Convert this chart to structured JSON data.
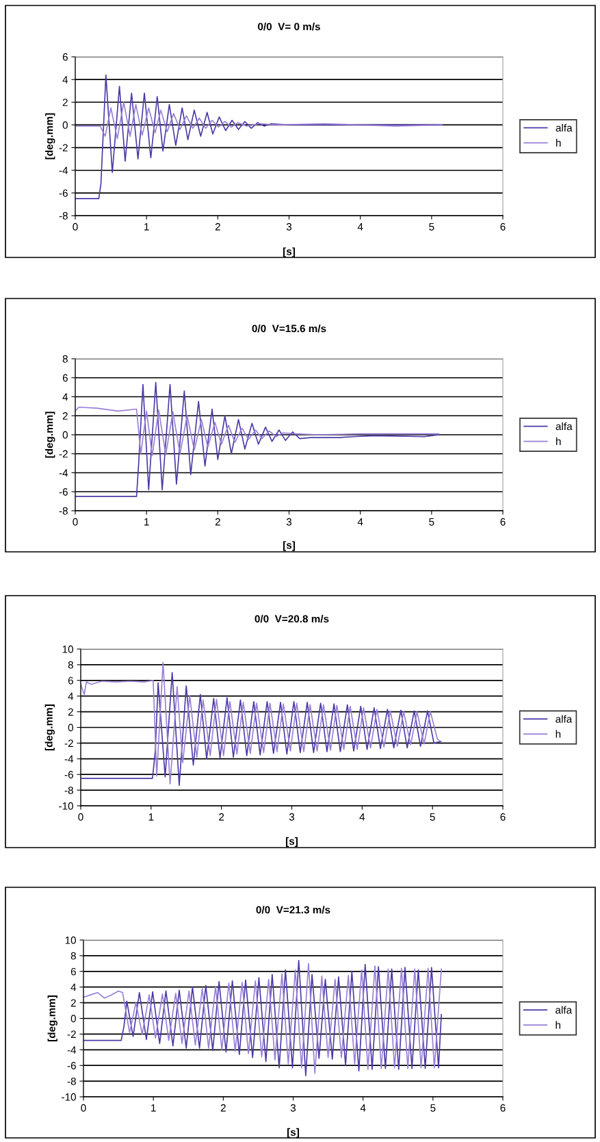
{
  "chart_data": [
    {
      "type": "line",
      "title": "0/0  V= 0 m/s",
      "xlabel": "[s]",
      "ylabel": "[deg.mm]",
      "xlim": [
        0,
        6
      ],
      "xticks": [
        0,
        1,
        2,
        3,
        4,
        5,
        6
      ],
      "ylim": [
        -8,
        6
      ],
      "yticks": [
        -8,
        -6,
        -4,
        -2,
        0,
        2,
        4,
        6
      ],
      "grid": "y",
      "legend": "right",
      "series": [
        {
          "name": "alfa",
          "color": "#4b3aa8",
          "x": [
            0,
            0.33,
            0.36,
            0.43,
            0.52,
            0.62,
            0.7,
            0.79,
            0.88,
            0.97,
            1.06,
            1.15,
            1.23,
            1.32,
            1.41,
            1.5,
            1.58,
            1.67,
            1.76,
            1.85,
            1.93,
            2.02,
            2.11,
            2.2,
            2.29,
            2.38,
            2.47,
            2.56,
            2.65,
            2.75,
            3.0,
            5.15
          ],
          "values": [
            -6.5,
            -6.5,
            -5.2,
            4.4,
            -4.2,
            3.4,
            -3.2,
            2.8,
            -3.0,
            2.8,
            -2.9,
            2.5,
            -2.3,
            1.8,
            -1.8,
            1.5,
            -1.3,
            1.3,
            -1.0,
            1.1,
            -0.8,
            0.7,
            -0.5,
            0.4,
            -0.4,
            0.3,
            -0.3,
            0.2,
            -0.1,
            0.1,
            0,
            0
          ]
        },
        {
          "name": "h",
          "color": "#9a7fd6",
          "x": [
            0,
            0.35,
            0.42,
            0.5,
            0.59,
            0.68,
            0.77,
            0.85,
            0.94,
            1.03,
            1.12,
            1.2,
            1.29,
            1.38,
            1.47,
            1.56,
            1.65,
            1.74,
            1.83,
            1.92,
            2.01,
            2.1,
            2.19,
            2.28,
            2.4,
            2.6,
            2.8,
            3.5,
            4.5,
            5.15
          ],
          "values": [
            -0.1,
            -0.1,
            -1.0,
            1.5,
            -1.2,
            2.0,
            -1.0,
            1.8,
            -0.9,
            1.5,
            -0.7,
            1.3,
            -0.6,
            1.0,
            -0.4,
            0.8,
            -0.3,
            0.6,
            -0.3,
            0.4,
            -0.2,
            0.3,
            -0.2,
            0.2,
            -0.1,
            0.1,
            0,
            0.1,
            -0.1,
            0
          ]
        }
      ]
    },
    {
      "type": "line",
      "title": "0/0  V=15.6 m/s",
      "xlabel": "[s]",
      "ylabel": "[deg.mm]",
      "xlim": [
        0,
        6
      ],
      "xticks": [
        0,
        1,
        2,
        3,
        4,
        5,
        6
      ],
      "ylim": [
        -8,
        8
      ],
      "yticks": [
        -8,
        -6,
        -4,
        -2,
        0,
        2,
        4,
        6,
        8
      ],
      "grid": "y",
      "legend": "right",
      "series": [
        {
          "name": "alfa",
          "color": "#4b3aa8",
          "x": [
            0,
            0.86,
            0.89,
            0.95,
            1.03,
            1.13,
            1.22,
            1.33,
            1.42,
            1.53,
            1.62,
            1.73,
            1.82,
            1.92,
            2.0,
            2.1,
            2.19,
            2.29,
            2.38,
            2.48,
            2.57,
            2.67,
            2.76,
            2.86,
            2.95,
            3.05,
            3.15,
            3.3,
            3.5,
            3.7,
            3.9,
            4.2,
            4.9,
            5.1
          ],
          "values": [
            -6.5,
            -6.5,
            -3,
            5.3,
            -5.8,
            5.5,
            -5.8,
            5.3,
            -5.2,
            4.6,
            -4.2,
            3.5,
            -3.3,
            2.7,
            -2.6,
            2.0,
            -2.0,
            1.6,
            -1.5,
            1.2,
            -1.0,
            0.8,
            -0.7,
            0.5,
            -0.6,
            0.3,
            -0.4,
            -0.3,
            -0.3,
            -0.3,
            -0.2,
            -0.1,
            -0.2,
            0
          ]
        },
        {
          "name": "h",
          "color": "#9a7fd6",
          "x": [
            0,
            0.05,
            0.3,
            0.6,
            0.86,
            0.92,
            1.0,
            1.08,
            1.17,
            1.27,
            1.37,
            1.47,
            1.57,
            1.67,
            1.77,
            1.86,
            1.96,
            2.05,
            2.15,
            2.24,
            2.34,
            2.43,
            2.53,
            2.62,
            2.72,
            2.82,
            2.91,
            3.1,
            3.4,
            4.0,
            4.5,
            5.1
          ],
          "values": [
            2.5,
            2.9,
            2.8,
            2.5,
            2.7,
            -2.0,
            2.5,
            -2.2,
            2.6,
            -2.1,
            2.4,
            -2.0,
            2.0,
            -1.6,
            1.6,
            -1.3,
            1.3,
            -1.0,
            1.0,
            -0.8,
            0.7,
            -0.5,
            0.5,
            -0.4,
            0.4,
            -0.2,
            0.2,
            0.1,
            0,
            0.1,
            0.1,
            0.1
          ]
        }
      ]
    },
    {
      "type": "line",
      "title": "0/0  V=20.8 m/s",
      "xlabel": "[s]",
      "ylabel": "[deg.mm]",
      "xlim": [
        0,
        6
      ],
      "xticks": [
        0,
        1,
        2,
        3,
        4,
        5,
        6
      ],
      "ylim": [
        -10,
        10
      ],
      "yticks": [
        -10,
        -8,
        -6,
        -4,
        -2,
        0,
        2,
        4,
        6,
        8,
        10
      ],
      "grid": "y",
      "legend": "right",
      "series": [
        {
          "name": "alfa",
          "color": "#4b3aa8",
          "x": [
            0,
            1.02,
            1.06,
            1.1,
            1.2,
            1.3,
            1.4,
            1.5,
            1.6,
            1.7,
            1.79,
            1.89,
            1.98,
            2.08,
            2.17,
            2.27,
            2.36,
            2.46,
            2.55,
            2.65,
            2.74,
            2.84,
            2.93,
            3.03,
            3.12,
            3.22,
            3.31,
            3.41,
            3.5,
            3.6,
            3.69,
            3.79,
            3.88,
            3.98,
            4.07,
            4.17,
            4.26,
            4.36,
            4.45,
            4.55,
            4.64,
            4.74,
            4.83,
            4.93,
            5.02,
            5.12
          ],
          "values": [
            -6.5,
            -6.5,
            -3,
            5.7,
            -6.3,
            7.0,
            -7.4,
            5.3,
            -4.8,
            4.2,
            -4.0,
            3.7,
            -3.9,
            3.8,
            -3.8,
            3.5,
            -3.6,
            3.3,
            -3.5,
            3.3,
            -3.3,
            3.2,
            -3.4,
            3.3,
            -3.2,
            3.2,
            -3.2,
            3.1,
            -3.1,
            3.0,
            -3.1,
            2.9,
            -3.0,
            2.7,
            -2.8,
            2.5,
            -2.7,
            2.3,
            -2.6,
            2.2,
            -2.6,
            2.1,
            -2.4,
            2.1,
            -2.0,
            -1.8
          ]
        },
        {
          "name": "h",
          "color": "#9a7fd6",
          "x": [
            0,
            0.05,
            0.08,
            0.15,
            0.3,
            0.5,
            0.7,
            0.9,
            1.03,
            1.08,
            1.17,
            1.27,
            1.37,
            1.45,
            1.55,
            1.65,
            1.74,
            1.84,
            1.93,
            2.03,
            2.12,
            2.22,
            2.31,
            2.41,
            2.5,
            2.6,
            2.69,
            2.79,
            2.88,
            2.98,
            3.07,
            3.17,
            3.26,
            3.36,
            3.45,
            3.55,
            3.64,
            3.74,
            3.83,
            3.93,
            4.02,
            4.12,
            4.21,
            4.31,
            4.4,
            4.5,
            4.59,
            4.69,
            4.78,
            4.88,
            4.97,
            5.07,
            5.12
          ],
          "values": [
            5.5,
            4.2,
            5.8,
            5.5,
            5.9,
            5.8,
            5.9,
            5.8,
            6.0,
            -6.2,
            8.3,
            -7.2,
            5.2,
            -4.5,
            4.0,
            -3.8,
            3.5,
            -3.6,
            3.6,
            -3.6,
            3.3,
            -3.4,
            3.2,
            -3.3,
            3.1,
            -3.2,
            3.1,
            -3.1,
            3.0,
            -3.0,
            3.1,
            -3.1,
            2.9,
            -3.0,
            2.9,
            -2.9,
            2.8,
            -2.8,
            2.7,
            -2.8,
            2.5,
            -2.6,
            2.3,
            -2.5,
            2.1,
            -2.4,
            2.0,
            -2.2,
            2.0,
            -2.1,
            2.0,
            -1.5,
            -1.8
          ]
        }
      ]
    },
    {
      "type": "line",
      "title": "0/0  V=21.3 m/s",
      "xlabel": "[s]",
      "ylabel": "[deg.mm]",
      "xlim": [
        0,
        6
      ],
      "xticks": [
        0,
        1,
        2,
        3,
        4,
        5,
        6
      ],
      "ylim": [
        -10,
        10
      ],
      "yticks": [
        -10,
        -8,
        -6,
        -4,
        -2,
        0,
        2,
        4,
        6,
        8,
        10
      ],
      "grid": "y",
      "legend": "right",
      "series": [
        {
          "name": "alfa",
          "color": "#4b3aa8",
          "x": [
            0,
            0.54,
            0.58,
            0.62,
            0.71,
            0.8,
            0.9,
            0.99,
            1.09,
            1.18,
            1.28,
            1.37,
            1.47,
            1.56,
            1.66,
            1.75,
            1.85,
            1.94,
            2.04,
            2.13,
            2.23,
            2.32,
            2.42,
            2.51,
            2.61,
            2.7,
            2.8,
            2.89,
            2.99,
            3.08,
            3.18,
            3.27,
            3.37,
            3.46,
            3.56,
            3.65,
            3.75,
            3.84,
            3.94,
            4.03,
            4.13,
            4.22,
            4.32,
            4.41,
            4.51,
            4.6,
            4.7,
            4.79,
            4.89,
            4.98,
            5.08,
            5.12
          ],
          "values": [
            -2.8,
            -2.8,
            -1,
            2.2,
            -2.3,
            3.3,
            -2.7,
            3.4,
            -3.2,
            3.5,
            -3.5,
            3.6,
            -3.8,
            4.0,
            -3.8,
            4.2,
            -4.1,
            4.7,
            -4.3,
            4.8,
            -4.6,
            4.9,
            -5.0,
            5.2,
            -5.5,
            5.6,
            -6.3,
            6.2,
            -6.3,
            7.4,
            -7.3,
            5.6,
            -5.1,
            5.0,
            -5.2,
            5.3,
            -6.0,
            6.0,
            -6.7,
            6.9,
            -6.5,
            6.6,
            -6.4,
            6.3,
            -6.5,
            6.5,
            -6.4,
            6.2,
            -6.4,
            6.5,
            -6.3,
            0.5
          ]
        },
        {
          "name": "h",
          "color": "#9a7fd6",
          "x": [
            0,
            0.1,
            0.2,
            0.3,
            0.4,
            0.5,
            0.56,
            0.66,
            0.75,
            0.84,
            0.94,
            1.03,
            1.13,
            1.22,
            1.32,
            1.41,
            1.51,
            1.6,
            1.7,
            1.79,
            1.89,
            1.98,
            2.08,
            2.17,
            2.27,
            2.36,
            2.46,
            2.55,
            2.65,
            2.74,
            2.84,
            2.93,
            3.03,
            3.12,
            3.22,
            3.31,
            3.41,
            3.5,
            3.6,
            3.69,
            3.79,
            3.88,
            3.98,
            4.07,
            4.17,
            4.26,
            4.36,
            4.45,
            4.55,
            4.64,
            4.74,
            4.83,
            4.93,
            5.02,
            5.12
          ],
          "values": [
            2.7,
            3.0,
            3.3,
            2.6,
            3.0,
            3.5,
            3.3,
            -1.8,
            2.0,
            -2.0,
            3.0,
            -2.5,
            3.1,
            -2.8,
            3.2,
            -3.2,
            3.5,
            -3.4,
            3.8,
            -3.8,
            4.1,
            -4.0,
            4.5,
            -4.2,
            4.6,
            -4.5,
            4.8,
            -4.9,
            5.0,
            -5.3,
            5.7,
            -5.8,
            6.2,
            -6.3,
            7.0,
            -7.0,
            5.4,
            -5.0,
            5.0,
            -5.0,
            5.5,
            -5.8,
            6.2,
            -6.5,
            6.7,
            -6.4,
            6.3,
            -6.3,
            6.4,
            -6.4,
            6.3,
            -6.3,
            6.4,
            -6.3,
            6.3
          ]
        }
      ]
    }
  ]
}
